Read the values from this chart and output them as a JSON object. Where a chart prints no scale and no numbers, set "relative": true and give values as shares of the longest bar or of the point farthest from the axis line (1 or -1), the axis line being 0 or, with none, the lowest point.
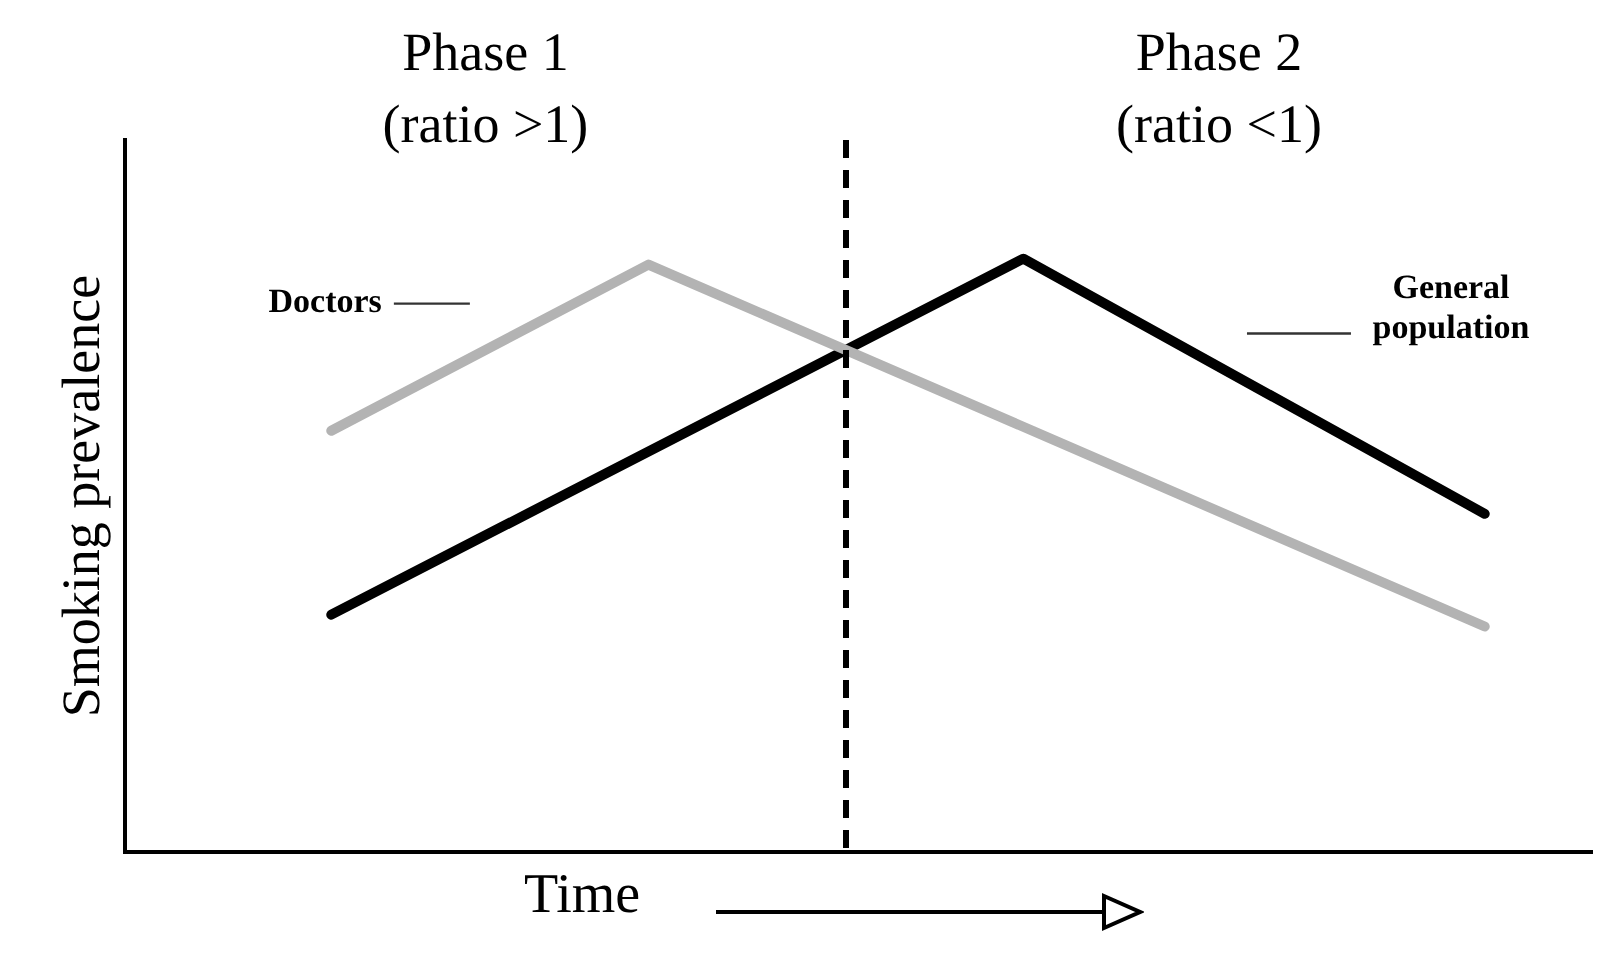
{
  "chart_data": {
    "type": "line",
    "relative": true,
    "xlabel": "Time",
    "ylabel": "Smoking prevalence",
    "categories": [
      null,
      null,
      null,
      null,
      null,
      null,
      null,
      null,
      null,
      null,
      null,
      null,
      null,
      null,
      null,
      null,
      null,
      null,
      null,
      null,
      null,
      null,
      null,
      null,
      null,
      null,
      null,
      null,
      null,
      null,
      null,
      null,
      null,
      null,
      null,
      null,
      null,
      null,
      null,
      null,
      null
    ],
    "series": [
      {
        "name": "Doctors",
        "color": "#b3b3b3",
        "values": [
          0.71,
          null,
          null,
          null,
          null,
          null,
          null,
          null,
          null,
          null,
          null,
          0.99,
          null,
          null,
          null,
          null,
          null,
          null,
          null,
          null,
          null,
          null,
          null,
          null,
          null,
          null,
          null,
          null,
          null,
          null,
          null,
          null,
          null,
          null,
          null,
          null,
          null,
          null,
          null,
          null,
          0.38
        ]
      },
      {
        "name": "General population",
        "color": "#000000",
        "values": [
          0.4,
          null,
          null,
          null,
          null,
          null,
          null,
          null,
          null,
          null,
          null,
          null,
          null,
          null,
          null,
          null,
          null,
          null,
          null,
          null,
          null,
          null,
          null,
          null,
          1,
          null,
          null,
          null,
          null,
          null,
          null,
          null,
          null,
          null,
          null,
          null,
          null,
          null,
          null,
          null,
          0.57
        ]
      }
    ],
    "annotations": [
      "Phase 1\n(ratio >1)",
      "Phase 2\n(ratio <1)"
    ],
    "legend": false,
    "marker": "none",
    "line_style": "solid"
  }
}
